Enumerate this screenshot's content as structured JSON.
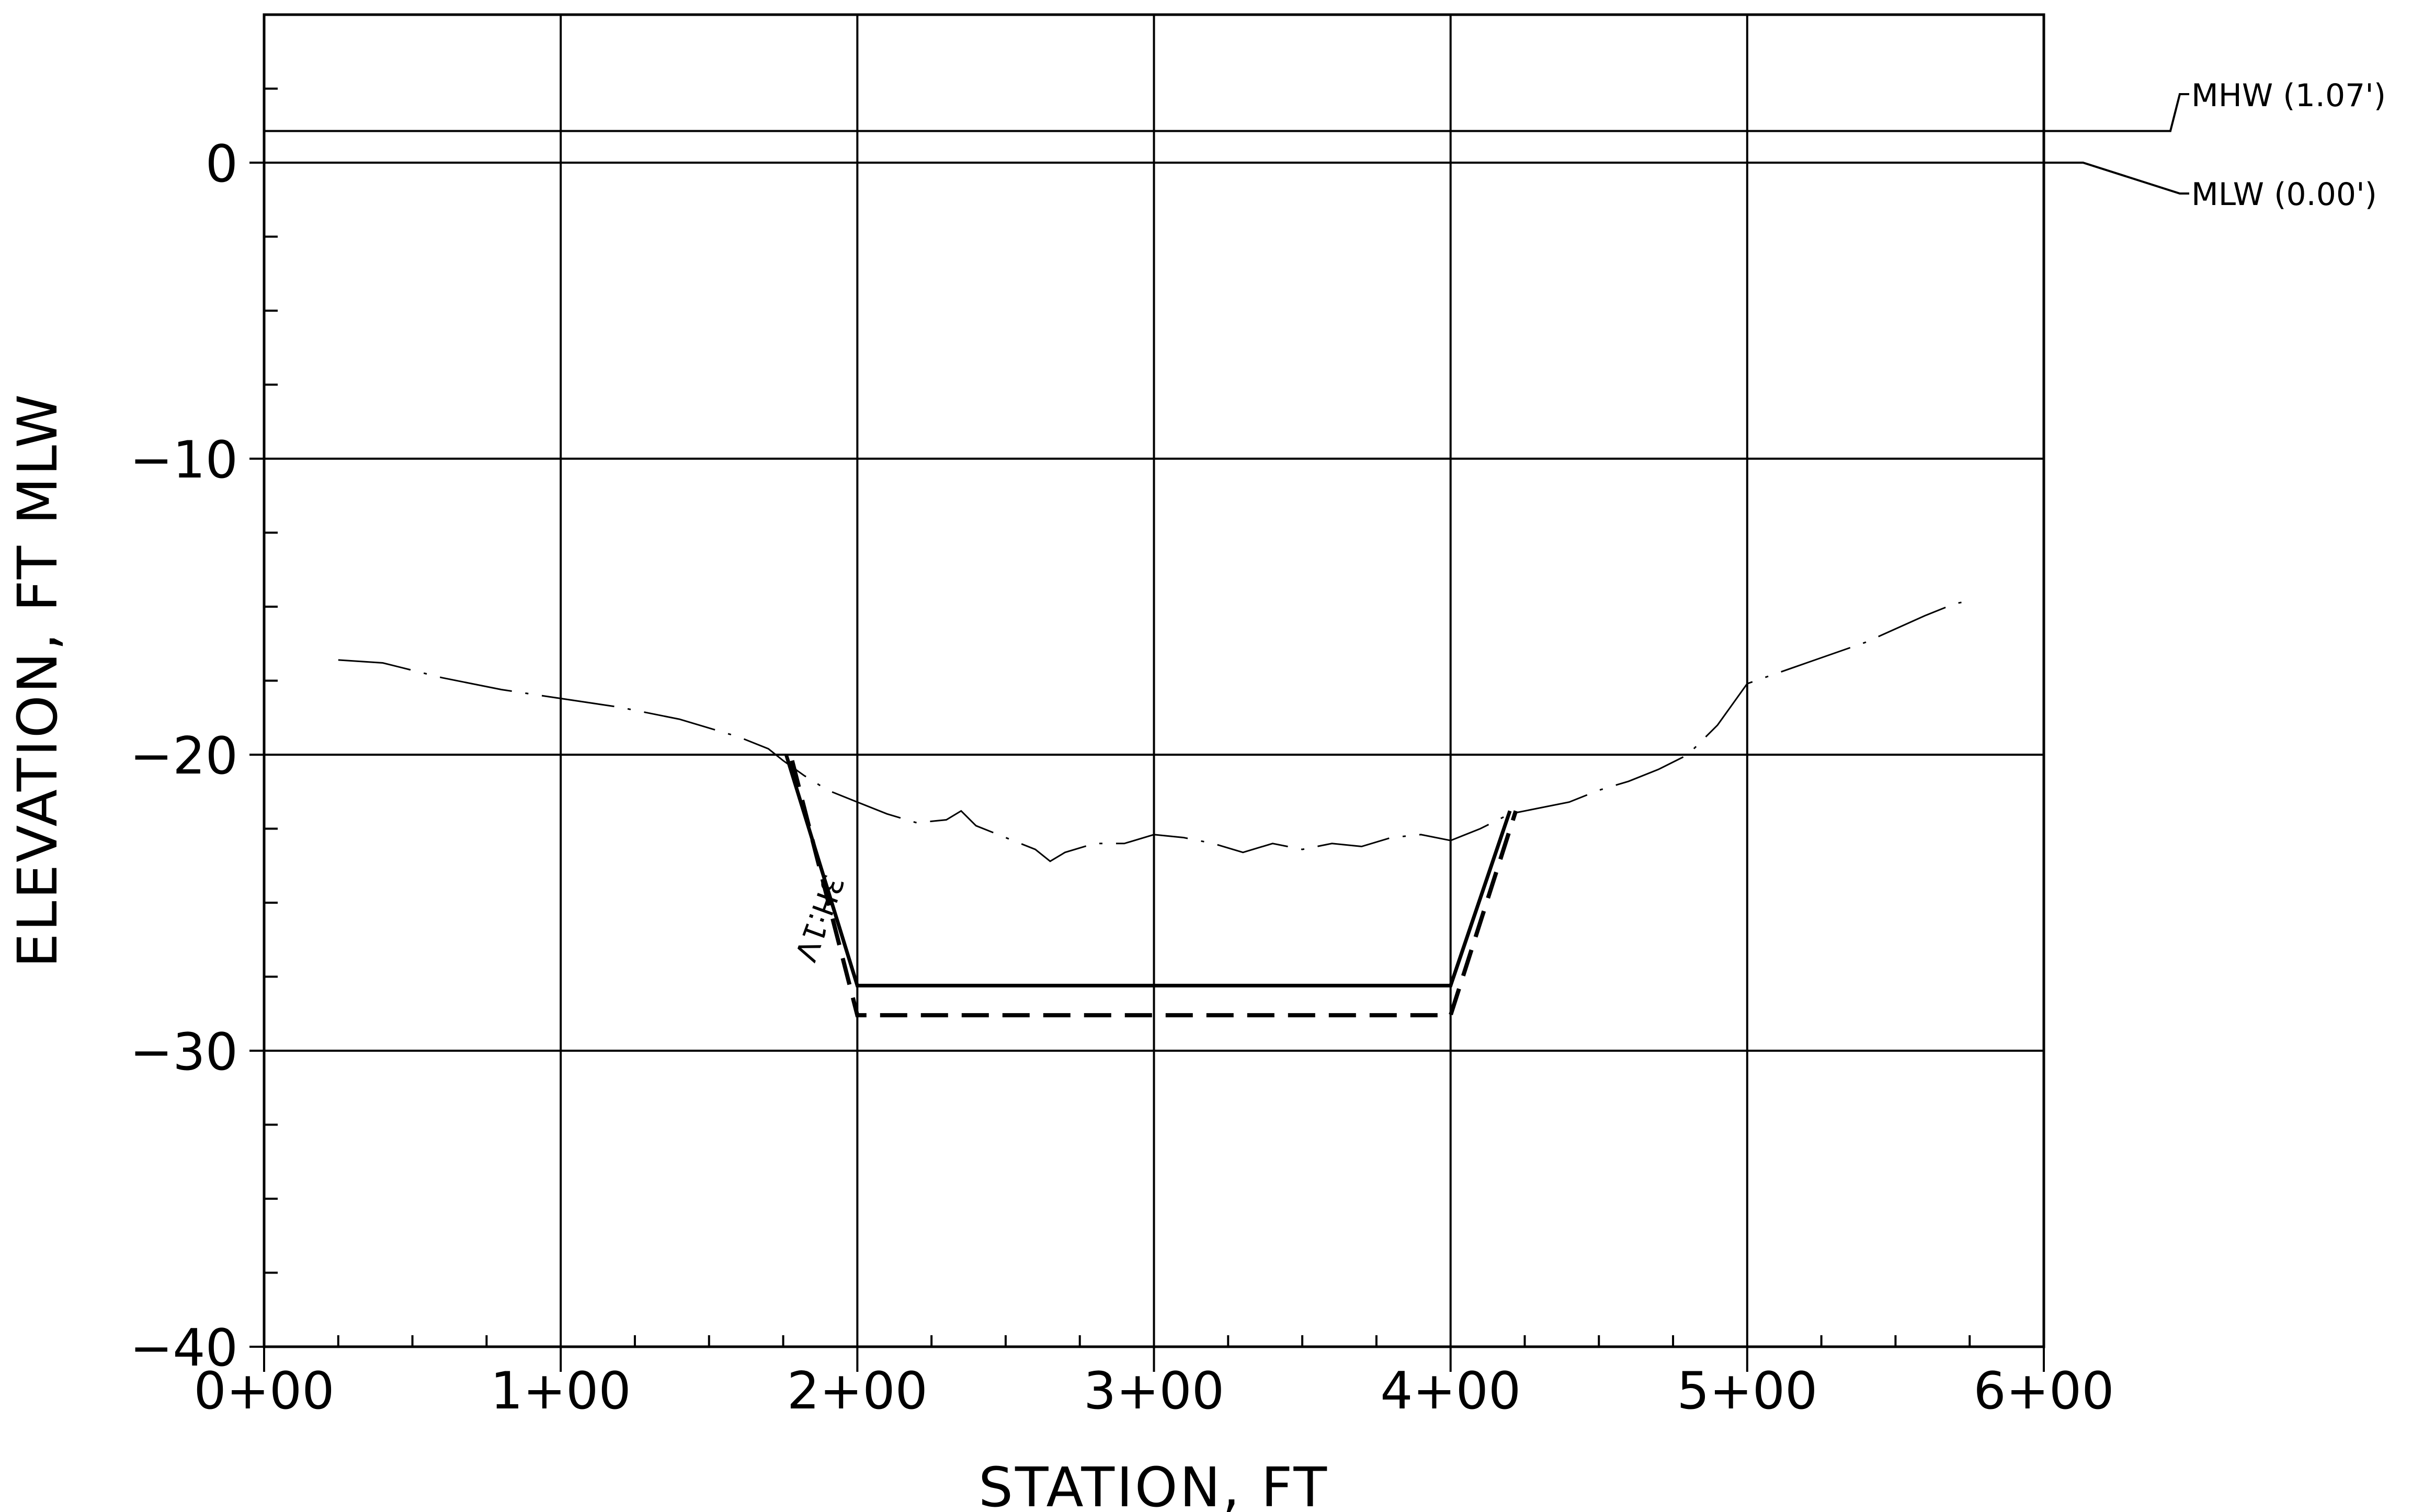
{
  "chart_data": {
    "type": "line",
    "title": "",
    "xlabel": "STATION, FT",
    "ylabel": "ELEVATION, FT MLW",
    "xlim": [
      0,
      600
    ],
    "ylim": [
      -40,
      5
    ],
    "x_ticks": [
      {
        "value": 0,
        "label": "0+00"
      },
      {
        "value": 100,
        "label": "1+00"
      },
      {
        "value": 200,
        "label": "2+00"
      },
      {
        "value": 300,
        "label": "3+00"
      },
      {
        "value": 400,
        "label": "4+00"
      },
      {
        "value": 500,
        "label": "5+00"
      },
      {
        "value": 600,
        "label": "6+00"
      }
    ],
    "y_ticks": [
      {
        "value": 0,
        "label": "0"
      },
      {
        "value": -10,
        "label": "−10"
      },
      {
        "value": -20,
        "label": "−20"
      },
      {
        "value": -30,
        "label": "−30"
      },
      {
        "value": -40,
        "label": "−40"
      }
    ],
    "x_minor_step": 25,
    "y_minor_step": 2.5,
    "grid": true,
    "water_levels": [
      {
        "label": "MHW (1.07')",
        "value": 1.07
      },
      {
        "label": "MLW (0.00')",
        "value": 0.0
      }
    ],
    "series": [
      {
        "style": "dash-dot",
        "x": [
          25,
          40,
          60,
          80,
          100,
          120,
          140,
          160,
          170,
          175,
          182,
          190,
          200,
          210,
          220,
          230,
          235,
          240,
          250,
          260,
          265,
          270,
          280,
          290,
          300,
          310,
          320,
          330,
          340,
          350,
          360,
          370,
          380,
          390,
          400,
          410,
          420,
          430,
          440,
          450,
          460,
          470,
          480,
          490,
          500,
          520,
          540,
          560,
          570,
          575
        ],
        "y": [
          -16.8,
          -16.9,
          -17.4,
          -17.8,
          -18.1,
          -18.4,
          -18.8,
          -19.4,
          -19.8,
          -20.2,
          -20.7,
          -21.2,
          -21.6,
          -22.0,
          -22.3,
          -22.2,
          -21.9,
          -22.4,
          -22.8,
          -23.2,
          -23.6,
          -23.3,
          -23.0,
          -23.0,
          -22.7,
          -22.8,
          -23.0,
          -23.3,
          -23.0,
          -23.2,
          -23.0,
          -23.1,
          -22.8,
          -22.7,
          -22.9,
          -22.5,
          -22.0,
          -21.8,
          -21.6,
          -21.2,
          -20.9,
          -20.5,
          -20.0,
          -19.0,
          -17.6,
          -16.9,
          -16.2,
          -15.3,
          -14.9,
          -14.8
        ]
      },
      {
        "style": "solid",
        "x": [
          176,
          200,
          400,
          420
        ],
        "y": [
          -20.0,
          -27.8,
          -27.8,
          -21.9
        ]
      },
      {
        "style": "dashed",
        "x": [
          178,
          200,
          400,
          422
        ],
        "y": [
          -20.2,
          -28.8,
          -28.8,
          -21.9
        ]
      }
    ],
    "annotations": [
      {
        "text": "3H:1V",
        "x": 184,
        "y": -25.4,
        "rotation": -70
      }
    ]
  }
}
